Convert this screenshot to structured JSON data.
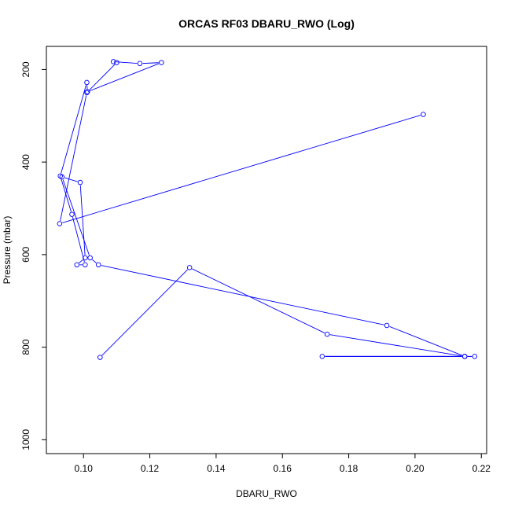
{
  "chart_data": {
    "type": "line",
    "title": "ORCAS RF03 DBARU_RWO (Log)",
    "xlabel": "DBARU_RWO",
    "ylabel": "Pressure (mbar)",
    "xlim": [
      0.0888,
      0.2216
    ],
    "ylim": [
      1030,
      150
    ],
    "y_reversed": true,
    "x_ticks": [
      0.1,
      0.12,
      0.14,
      0.16,
      0.18,
      0.2,
      0.22
    ],
    "x_tick_labels": [
      "0.10",
      "0.12",
      "0.14",
      "0.16",
      "0.18",
      "0.20",
      "0.22"
    ],
    "y_ticks": [
      200,
      400,
      600,
      800,
      1000
    ],
    "y_tick_labels": [
      "200",
      "400",
      "600",
      "800",
      "1000"
    ],
    "grid": false,
    "legend": "none",
    "series_color": "#0000ff",
    "series": [
      {
        "x": [
          0.105,
          0.132,
          0.1735,
          0.215,
          0.172,
          0.215,
          0.218,
          0.215,
          0.1915,
          0.1045,
          0.102,
          0.0935,
          0.099,
          0.1005,
          0.098,
          0.1005,
          0.0965,
          0.093,
          0.101,
          0.1012,
          0.1235,
          0.117,
          0.109,
          0.11,
          0.101,
          0.0928,
          0.2025
        ],
        "y": [
          822,
          628,
          772,
          820,
          820,
          820,
          820,
          820,
          753,
          622,
          607,
          432,
          444,
          607,
          622,
          622,
          513,
          430,
          228,
          248,
          185,
          187,
          183,
          185,
          250,
          533,
          297
        ]
      }
    ]
  }
}
